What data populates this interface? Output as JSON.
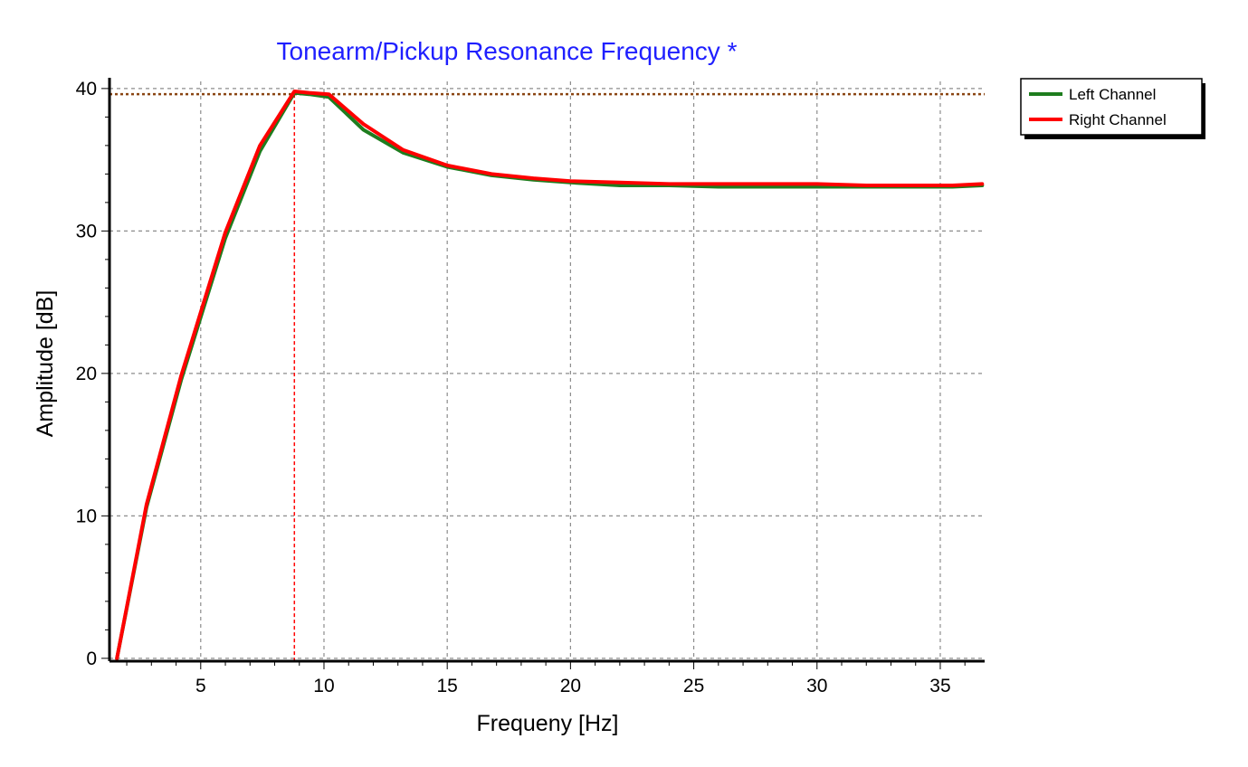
{
  "chart_data": {
    "type": "line",
    "title": "Tonearm/Pickup Resonance Frequency *",
    "xlabel": "Frequeny [Hz]",
    "ylabel": "Amplitude [dB]",
    "xlim": [
      1.3,
      36.8
    ],
    "ylim": [
      -0.2,
      40.5
    ],
    "x_ticks": [
      5,
      10,
      15,
      20,
      25,
      30,
      35
    ],
    "y_ticks": [
      0,
      10,
      20,
      30,
      40
    ],
    "x_tick_labels": [
      "5",
      "10",
      "15",
      "20",
      "25",
      "30",
      "35"
    ],
    "y_tick_labels": [
      "0",
      "10",
      "20",
      "30",
      "40"
    ],
    "grid": true,
    "legend_position": "top-right",
    "reference_level_db": 39.6,
    "resonance_frequency_hz": 8.8,
    "colors": {
      "title": "#1f1fff",
      "grid": "#8c8c8c",
      "axis": "#000000",
      "reference_line": "#8b4513",
      "marker_line": "#ff0000"
    },
    "series": [
      {
        "name": "Left Channel",
        "color": "#1e7d1e",
        "x": [
          1.6,
          2.8,
          4.2,
          6.0,
          7.4,
          8.8,
          9.4,
          10.2,
          11.6,
          13.2,
          15.0,
          16.8,
          18.5,
          20.0,
          22.0,
          24.0,
          26.0,
          28.0,
          30.0,
          32.0,
          34.0,
          35.5,
          36.7
        ],
        "values": [
          0.0,
          10.6,
          19.5,
          29.5,
          35.6,
          39.7,
          39.6,
          39.4,
          37.1,
          35.5,
          34.5,
          33.9,
          33.6,
          33.4,
          33.2,
          33.2,
          33.1,
          33.1,
          33.1,
          33.1,
          33.1,
          33.1,
          33.2
        ]
      },
      {
        "name": "Right Channel",
        "color": "#ff0000",
        "x": [
          1.6,
          2.8,
          4.2,
          6.0,
          7.4,
          8.8,
          9.4,
          10.2,
          11.6,
          13.2,
          15.0,
          16.8,
          18.5,
          20.0,
          22.0,
          24.0,
          26.0,
          28.0,
          30.0,
          32.0,
          34.0,
          35.5,
          36.7
        ],
        "values": [
          0.0,
          10.8,
          19.8,
          29.9,
          36.0,
          39.8,
          39.7,
          39.6,
          37.5,
          35.7,
          34.6,
          34.0,
          33.7,
          33.5,
          33.4,
          33.3,
          33.3,
          33.3,
          33.3,
          33.2,
          33.2,
          33.2,
          33.3
        ]
      }
    ]
  }
}
